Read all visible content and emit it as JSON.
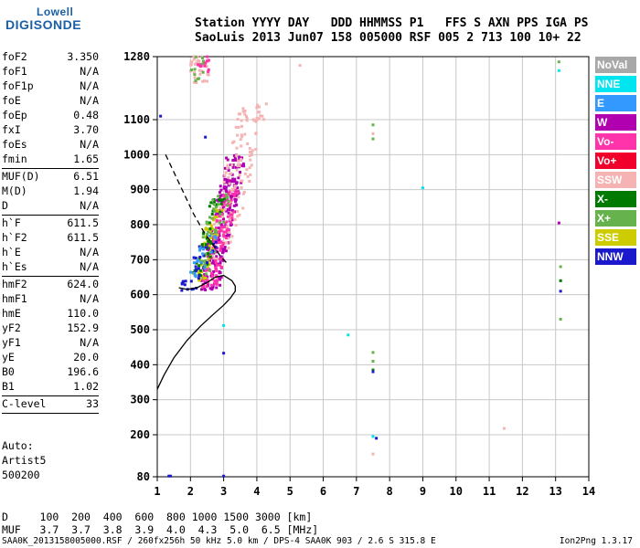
{
  "logo": {
    "line1": "Lowell",
    "line2": "DIGISONDE"
  },
  "header": {
    "line1": "Station YYYY DAY   DDD HHMMSS P1   FFS S AXN PPS IGA PS",
    "line2": "SaoLuis 2013 Jun07 158 005000 RSF 005 2 713 100 10+ 22"
  },
  "params": [
    {
      "k": "foF2",
      "v": "3.350"
    },
    {
      "k": "foF1",
      "v": "N/A"
    },
    {
      "k": "foF1p",
      "v": "N/A"
    },
    {
      "k": "foE",
      "v": "N/A"
    },
    {
      "k": "foEp",
      "v": "0.48"
    },
    {
      "k": "fxI",
      "v": "3.70"
    },
    {
      "k": "foEs",
      "v": "N/A"
    },
    {
      "k": "fmin",
      "v": "1.65"
    },
    {
      "k": "MUF(D)",
      "v": "6.51"
    },
    {
      "k": "M(D)",
      "v": "1.94"
    },
    {
      "k": "D",
      "v": "N/A"
    },
    {
      "k": "h`F",
      "v": "611.5"
    },
    {
      "k": "h`F2",
      "v": "611.5"
    },
    {
      "k": "h`E",
      "v": "N/A"
    },
    {
      "k": "h`Es",
      "v": "N/A"
    },
    {
      "k": "hmF2",
      "v": "624.0"
    },
    {
      "k": "hmF1",
      "v": "N/A"
    },
    {
      "k": "hmE",
      "v": "110.0"
    },
    {
      "k": "yF2",
      "v": "152.9"
    },
    {
      "k": "yF1",
      "v": "N/A"
    },
    {
      "k": "yE",
      "v": "20.0"
    },
    {
      "k": "B0",
      "v": "196.6"
    },
    {
      "k": "B1",
      "v": "1.02"
    },
    {
      "k": "C-level",
      "v": "33"
    }
  ],
  "auto": {
    "line1": "Auto:",
    "line2": "Artist5",
    "line3": "500200"
  },
  "legend": [
    {
      "label": "NoVal",
      "color": "#a8a8a8"
    },
    {
      "label": "NNE",
      "color": "#00e5f0"
    },
    {
      "label": "E",
      "color": "#3399ff"
    },
    {
      "label": "W",
      "color": "#b000b0"
    },
    {
      "label": "Vo-",
      "color": "#ff33aa"
    },
    {
      "label": "Vo+",
      "color": "#f0002a"
    },
    {
      "label": "SSW",
      "color": "#f5b3b3"
    },
    {
      "label": "X-",
      "color": "#007a00"
    },
    {
      "label": "X+",
      "color": "#66b24c"
    },
    {
      "label": "SSE",
      "color": "#cccc00"
    },
    {
      "label": "NNW",
      "color": "#1a1acc"
    }
  ],
  "dmuf": {
    "d_line": "D     100  200  400  600  800 1000 1500 3000 [km]",
    "muf_line": "MUF   3.7  3.7  3.8  3.9  4.0  4.3  5.0  6.5 [MHz]"
  },
  "footer": "SAA0K_2013158005000.RSF / 260fx256h 50 kHz 5.0 km / DPS-4 SAA0K 903 / 2.6 S 315.8 E",
  "version": "Ion2Png 1.3.17",
  "chart_data": {
    "type": "scatter",
    "xlim": [
      1,
      14
    ],
    "ylim": [
      80,
      1280
    ],
    "xticks": [
      1,
      2,
      3,
      4,
      5,
      6,
      7,
      8,
      9,
      10,
      11,
      12,
      13,
      14
    ],
    "yticks": [
      80,
      200,
      300,
      400,
      500,
      600,
      700,
      800,
      900,
      1000,
      1100,
      1280
    ],
    "grid": true,
    "profile_solid": [
      [
        1.0,
        330
      ],
      [
        1.2,
        370
      ],
      [
        1.5,
        420
      ],
      [
        1.9,
        470
      ],
      [
        2.3,
        510
      ],
      [
        2.7,
        545
      ],
      [
        3.0,
        570
      ],
      [
        3.2,
        590
      ],
      [
        3.35,
        610
      ],
      [
        3.35,
        625
      ],
      [
        3.25,
        640
      ],
      [
        3.0,
        655
      ],
      [
        2.75,
        650
      ],
      [
        2.5,
        635
      ],
      [
        2.2,
        620
      ],
      [
        1.9,
        615
      ],
      [
        1.65,
        620
      ]
    ],
    "profile_dashed": [
      [
        1.25,
        1000
      ],
      [
        1.5,
        950
      ],
      [
        1.8,
        890
      ],
      [
        2.1,
        830
      ],
      [
        2.4,
        780
      ],
      [
        2.7,
        740
      ],
      [
        2.9,
        710
      ],
      [
        3.1,
        690
      ]
    ],
    "clusters": [
      {
        "color": "#b000b0",
        "x": [
          2.2,
          3.6
        ],
        "y": [
          610,
          1000
        ],
        "n": 240,
        "slope": 0.55
      },
      {
        "color": "#f5b3b3",
        "x": [
          2.4,
          4.2
        ],
        "y": [
          700,
          1150
        ],
        "n": 130,
        "slope": 0.55
      },
      {
        "color": "#ff33aa",
        "x": [
          2.3,
          3.4
        ],
        "y": [
          620,
          900
        ],
        "n": 110,
        "slope": 0.55
      },
      {
        "color": "#cccc00",
        "x": [
          2.0,
          3.0
        ],
        "y": [
          640,
          860
        ],
        "n": 55,
        "slope": 0.55
      },
      {
        "color": "#007a00",
        "x": [
          2.0,
          3.0
        ],
        "y": [
          650,
          880
        ],
        "n": 45,
        "slope": 0.55
      },
      {
        "color": "#66b24c",
        "x": [
          2.0,
          3.2
        ],
        "y": [
          650,
          900
        ],
        "n": 40,
        "slope": 0.55
      },
      {
        "color": "#1a1acc",
        "x": [
          1.6,
          2.8
        ],
        "y": [
          610,
          760
        ],
        "n": 30,
        "slope": 0.55
      },
      {
        "color": "#3399ff",
        "x": [
          1.8,
          2.8
        ],
        "y": [
          640,
          770
        ],
        "n": 20,
        "slope": 0.55
      },
      {
        "color": "#f5b3b3",
        "x": [
          2.0,
          2.6
        ],
        "y": [
          1200,
          1280
        ],
        "n": 40,
        "slope": 0
      },
      {
        "color": "#66b24c",
        "x": [
          2.0,
          2.5
        ],
        "y": [
          1210,
          1280
        ],
        "n": 12,
        "slope": 0
      },
      {
        "color": "#ff33aa",
        "x": [
          2.1,
          2.6
        ],
        "y": [
          1220,
          1280
        ],
        "n": 12,
        "slope": 0
      }
    ],
    "points": [
      {
        "x": 1.35,
        "y": 82,
        "c": "#1a1acc"
      },
      {
        "x": 1.4,
        "y": 82,
        "c": "#1a1acc"
      },
      {
        "x": 3.0,
        "y": 82,
        "c": "#1a1acc"
      },
      {
        "x": 3.0,
        "y": 433,
        "c": "#1a1acc"
      },
      {
        "x": 3.0,
        "y": 512,
        "c": "#00e5f0"
      },
      {
        "x": 2.45,
        "y": 1050,
        "c": "#1a1acc"
      },
      {
        "x": 1.1,
        "y": 1110,
        "c": "#1a1acc"
      },
      {
        "x": 5.3,
        "y": 1255,
        "c": "#f5b3b3"
      },
      {
        "x": 6.75,
        "y": 485,
        "c": "#00e5f0"
      },
      {
        "x": 7.5,
        "y": 435,
        "c": "#66b24c"
      },
      {
        "x": 7.5,
        "y": 410,
        "c": "#66b24c"
      },
      {
        "x": 7.5,
        "y": 385,
        "c": "#007a00"
      },
      {
        "x": 7.5,
        "y": 380,
        "c": "#1a1acc"
      },
      {
        "x": 7.5,
        "y": 195,
        "c": "#00e5f0"
      },
      {
        "x": 7.6,
        "y": 190,
        "c": "#1a1acc"
      },
      {
        "x": 7.5,
        "y": 145,
        "c": "#f5b3b3"
      },
      {
        "x": 7.5,
        "y": 1085,
        "c": "#66b24c"
      },
      {
        "x": 7.5,
        "y": 1060,
        "c": "#f5b3b3"
      },
      {
        "x": 7.5,
        "y": 1045,
        "c": "#66b24c"
      },
      {
        "x": 9.0,
        "y": 905,
        "c": "#00e5f0"
      },
      {
        "x": 11.45,
        "y": 218,
        "c": "#f5b3b3"
      },
      {
        "x": 13.1,
        "y": 1265,
        "c": "#66b24c"
      },
      {
        "x": 13.1,
        "y": 1240,
        "c": "#00e5f0"
      },
      {
        "x": 13.1,
        "y": 805,
        "c": "#b000b0"
      },
      {
        "x": 13.15,
        "y": 680,
        "c": "#66b24c"
      },
      {
        "x": 13.15,
        "y": 640,
        "c": "#007a00"
      },
      {
        "x": 13.15,
        "y": 610,
        "c": "#1a1acc"
      },
      {
        "x": 13.15,
        "y": 530,
        "c": "#66b24c"
      }
    ]
  }
}
